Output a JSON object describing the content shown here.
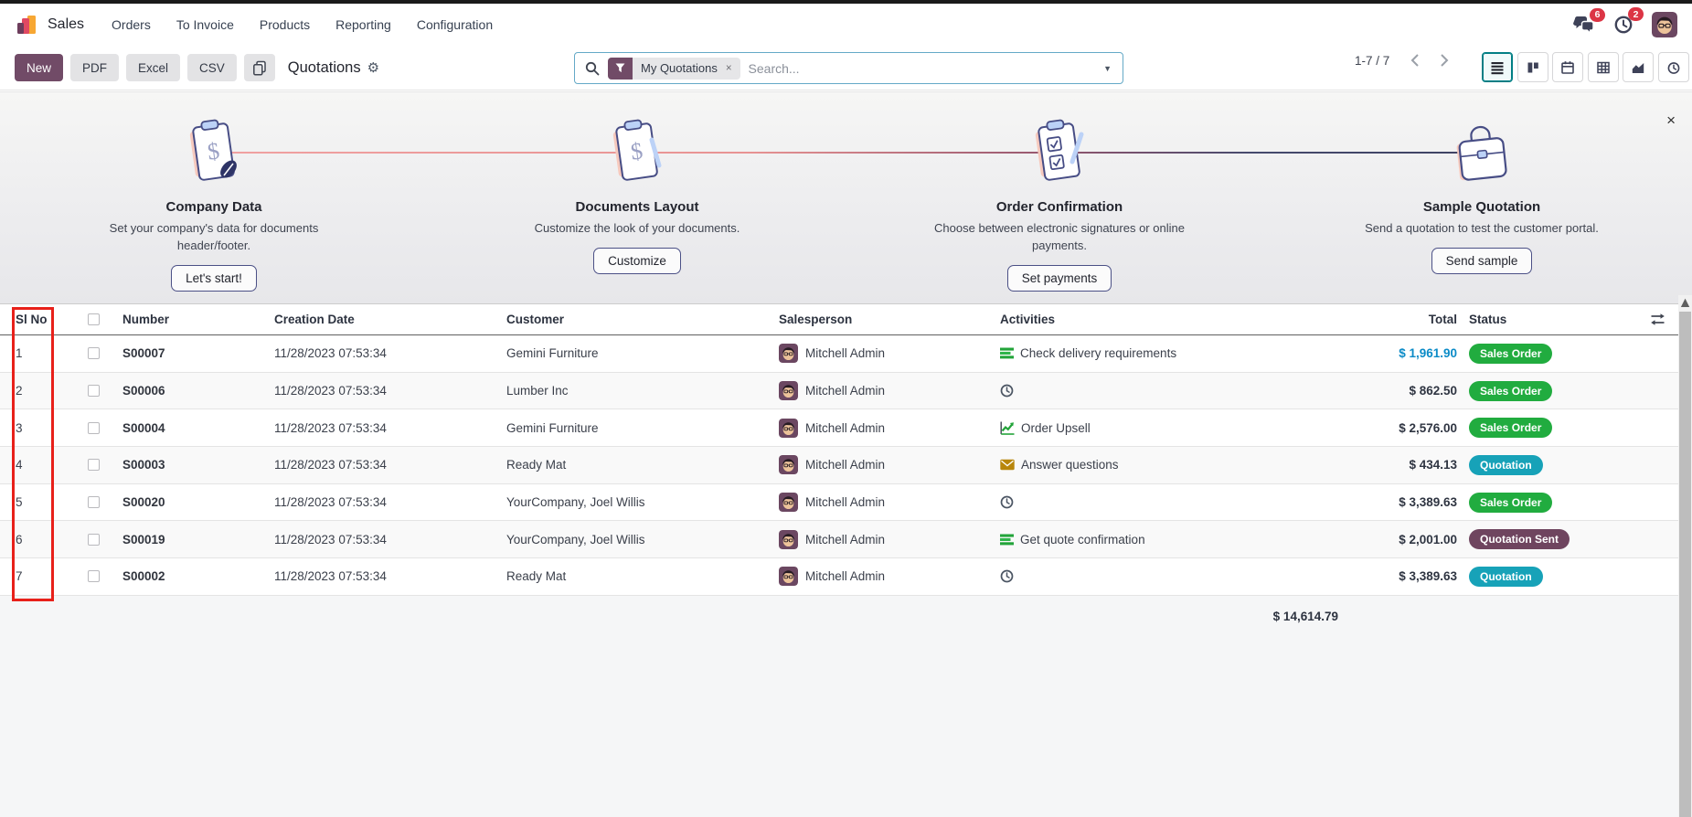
{
  "navbar": {
    "app_name": "Sales",
    "menus": [
      "Orders",
      "To Invoice",
      "Products",
      "Reporting",
      "Configuration"
    ],
    "messages_badge": "6",
    "activities_badge": "2",
    "icons": [
      "app-logo-icon",
      "messages-icon",
      "activities-clock-icon",
      "user-avatar"
    ]
  },
  "control_panel": {
    "new_label": "New",
    "pdf_label": "PDF",
    "excel_label": "Excel",
    "csv_label": "CSV",
    "title": "Quotations",
    "search": {
      "facet_label": "My Quotations",
      "facet_remove": "×",
      "placeholder": "Search..."
    },
    "pager": "1-7 / 7",
    "view_switcher": [
      "list-view",
      "kanban-view",
      "calendar-view",
      "pivot-view",
      "graph-view",
      "activity-view"
    ],
    "active_view": "list-view"
  },
  "onboarding": {
    "close_label": "×",
    "steps": [
      {
        "icon": "company-data",
        "title": "Company Data",
        "description": "Set your company's data for documents header/footer.",
        "button": "Let's start!"
      },
      {
        "icon": "documents-layout",
        "title": "Documents Layout",
        "description": "Customize the look of your documents.",
        "button": "Customize"
      },
      {
        "icon": "order-confirmation",
        "title": "Order Confirmation",
        "description": "Choose between electronic signatures or online payments.",
        "button": "Set payments"
      },
      {
        "icon": "sample-quotation",
        "title": "Sample Quotation",
        "description": "Send a quotation to test the customer portal.",
        "button": "Send sample"
      }
    ]
  },
  "table": {
    "headers": {
      "slno": "Sl No",
      "number": "Number",
      "creation_date": "Creation Date",
      "customer": "Customer",
      "salesperson": "Salesperson",
      "activities": "Activities",
      "total": "Total",
      "status": "Status"
    },
    "rows": [
      {
        "sl": "1",
        "number": "S00007",
        "date": "11/28/2023 07:53:34",
        "customer": "Gemini Furniture",
        "salesperson": "Mitchell Admin",
        "activity": "Check delivery requirements",
        "activity_icon": "tasks",
        "total": "$ 1,961.90",
        "total_highlight": true,
        "status": "Sales Order",
        "status_type": "success"
      },
      {
        "sl": "2",
        "number": "S00006",
        "date": "11/28/2023 07:53:34",
        "customer": "Lumber Inc",
        "salesperson": "Mitchell Admin",
        "activity": "",
        "activity_icon": "clock",
        "total": "$ 862.50",
        "total_highlight": false,
        "status": "Sales Order",
        "status_type": "success"
      },
      {
        "sl": "3",
        "number": "S00004",
        "date": "11/28/2023 07:53:34",
        "customer": "Gemini Furniture",
        "salesperson": "Mitchell Admin",
        "activity": "Order Upsell",
        "activity_icon": "chart",
        "total": "$ 2,576.00",
        "total_highlight": false,
        "status": "Sales Order",
        "status_type": "success"
      },
      {
        "sl": "4",
        "number": "S00003",
        "date": "11/28/2023 07:53:34",
        "customer": "Ready Mat",
        "salesperson": "Mitchell Admin",
        "activity": "Answer questions",
        "activity_icon": "envelope",
        "total": "$ 434.13",
        "total_highlight": false,
        "status": "Quotation",
        "status_type": "info"
      },
      {
        "sl": "5",
        "number": "S00020",
        "date": "11/28/2023 07:53:34",
        "customer": "YourCompany, Joel Willis",
        "salesperson": "Mitchell Admin",
        "activity": "",
        "activity_icon": "clock",
        "total": "$ 3,389.63",
        "total_highlight": false,
        "status": "Sales Order",
        "status_type": "success"
      },
      {
        "sl": "6",
        "number": "S00019",
        "date": "11/28/2023 07:53:34",
        "customer": "YourCompany, Joel Willis",
        "salesperson": "Mitchell Admin",
        "activity": "Get quote confirmation",
        "activity_icon": "tasks",
        "total": "$ 2,001.00",
        "total_highlight": false,
        "status": "Quotation Sent",
        "status_type": "sent"
      },
      {
        "sl": "7",
        "number": "S00002",
        "date": "11/28/2023 07:53:34",
        "customer": "Ready Mat",
        "salesperson": "Mitchell Admin",
        "activity": "",
        "activity_icon": "clock",
        "total": "$ 3,389.63",
        "total_highlight": false,
        "status": "Quotation",
        "status_type": "info"
      }
    ],
    "footer_total": "$ 14,614.79"
  },
  "colors": {
    "primary_purple": "#714B67",
    "accent_teal": "#017e84",
    "badge_success": "#21ac3f",
    "badge_info": "#17a2b8",
    "badge_sent": "#6f455f",
    "total_highlight": "#0b8bc7",
    "notification_red": "#dc3545",
    "annotation_red": "#e8201a"
  }
}
